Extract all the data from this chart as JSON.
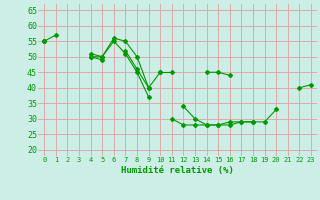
{
  "xlabel": "Humidité relative (%)",
  "bg_color": "#cceee6",
  "grid_color": "#ddaaaa",
  "line_color": "#009900",
  "xlim": [
    -0.5,
    23.5
  ],
  "ylim": [
    18,
    67
  ],
  "yticks": [
    20,
    25,
    30,
    35,
    40,
    45,
    50,
    55,
    60,
    65
  ],
  "xticks": [
    0,
    1,
    2,
    3,
    4,
    5,
    6,
    7,
    8,
    9,
    10,
    11,
    12,
    13,
    14,
    15,
    16,
    17,
    18,
    19,
    20,
    21,
    22,
    23
  ],
  "series": [
    [
      55,
      57,
      null,
      null,
      51,
      50,
      56,
      55,
      50,
      40,
      null,
      null,
      34,
      30,
      28,
      28,
      28,
      29,
      29,
      29,
      33,
      null,
      40,
      41
    ],
    [
      55,
      null,
      null,
      null,
      50,
      49,
      null,
      52,
      46,
      40,
      45,
      null,
      null,
      null,
      null,
      null,
      null,
      null,
      null,
      null,
      null,
      null,
      null,
      null
    ],
    [
      55,
      null,
      null,
      null,
      50,
      50,
      55,
      51,
      45,
      37,
      null,
      30,
      28,
      28,
      28,
      28,
      29,
      29,
      29,
      null,
      null,
      null,
      null,
      null
    ],
    [
      null,
      null,
      null,
      null,
      null,
      null,
      null,
      null,
      null,
      null,
      45,
      45,
      null,
      null,
      45,
      45,
      44,
      null,
      null,
      null,
      null,
      null,
      null,
      null
    ]
  ]
}
